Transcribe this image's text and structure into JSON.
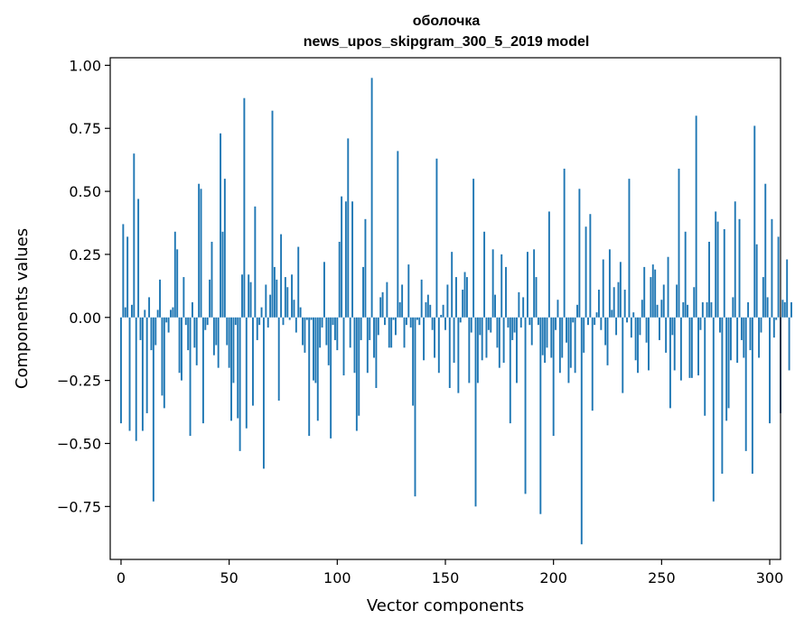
{
  "chart_data": {
    "type": "bar",
    "title": "оболочка",
    "subtitle": "news_upos_skipgram_300_5_2019 model",
    "xlabel": "Vector components",
    "ylabel": "Components values",
    "xlim": [
      -5,
      305
    ],
    "ylim": [
      -0.96,
      1.03
    ],
    "xticks": [
      0,
      50,
      100,
      150,
      200,
      250,
      300
    ],
    "yticks": [
      -0.75,
      -0.5,
      -0.25,
      0.0,
      0.25,
      0.5,
      0.75,
      1.0
    ],
    "ytick_labels": [
      "−0.75",
      "−0.50",
      "−0.25",
      "0.00",
      "0.25",
      "0.50",
      "0.75",
      "1.00"
    ],
    "grid": false,
    "legend": "none",
    "color": "#1f77b4",
    "values": [
      -0.42,
      0.37,
      0.04,
      0.32,
      -0.45,
      0.05,
      0.65,
      -0.49,
      0.47,
      -0.09,
      -0.45,
      0.03,
      -0.38,
      0.08,
      -0.13,
      -0.73,
      -0.11,
      0.03,
      0.15,
      -0.31,
      -0.36,
      -0.02,
      -0.06,
      0.03,
      0.04,
      0.34,
      0.27,
      -0.22,
      -0.25,
      0.16,
      -0.03,
      -0.13,
      -0.47,
      0.06,
      -0.12,
      -0.19,
      0.53,
      0.51,
      -0.42,
      -0.05,
      -0.03,
      0.15,
      0.3,
      -0.15,
      -0.11,
      -0.2,
      0.73,
      0.34,
      0.55,
      -0.11,
      -0.2,
      -0.41,
      -0.26,
      -0.03,
      -0.4,
      -0.53,
      0.17,
      0.87,
      -0.44,
      0.17,
      0.14,
      -0.35,
      0.44,
      -0.09,
      -0.03,
      0.04,
      -0.6,
      0.13,
      -0.04,
      0.09,
      0.82,
      0.2,
      0.15,
      -0.33,
      0.33,
      -0.03,
      0.16,
      0.12,
      -0.01,
      0.17,
      0.07,
      -0.06,
      0.28,
      0.04,
      -0.11,
      -0.14,
      -0.01,
      -0.47,
      -0.01,
      -0.25,
      -0.26,
      -0.41,
      -0.12,
      -0.04,
      0.22,
      -0.11,
      -0.19,
      -0.48,
      -0.03,
      -0.09,
      -0.13,
      0.3,
      0.48,
      -0.23,
      0.46,
      0.71,
      -0.12,
      0.46,
      -0.22,
      -0.45,
      -0.39,
      -0.09,
      0.2,
      0.39,
      -0.22,
      -0.09,
      0.95,
      -0.16,
      -0.28,
      -0.07,
      0.08,
      0.1,
      -0.03,
      0.14,
      -0.12,
      -0.12,
      -0.01,
      -0.07,
      0.66,
      0.06,
      0.13,
      -0.12,
      -0.03,
      0.21,
      -0.04,
      -0.35,
      -0.71,
      -0.01,
      -0.03,
      0.15,
      -0.17,
      0.06,
      0.09,
      0.05,
      -0.05,
      -0.16,
      0.63,
      -0.22,
      0.01,
      0.05,
      -0.05,
      0.13,
      -0.28,
      0.26,
      -0.18,
      0.16,
      -0.3,
      -0.02,
      0.11,
      0.18,
      0.16,
      -0.26,
      -0.06,
      0.55,
      -0.75,
      -0.26,
      -0.07,
      -0.17,
      0.34,
      -0.16,
      -0.05,
      -0.06,
      0.27,
      0.09,
      -0.12,
      -0.2,
      0.25,
      -0.18,
      0.2,
      -0.04,
      -0.42,
      -0.09,
      -0.06,
      -0.26,
      0.1,
      -0.04,
      0.08,
      -0.7,
      0.26,
      -0.03,
      -0.11,
      0.27,
      0.16,
      -0.03,
      -0.78,
      -0.15,
      -0.18,
      -0.12,
      0.42,
      -0.16,
      -0.47,
      -0.05,
      0.07,
      -0.22,
      -0.16,
      0.59,
      -0.1,
      -0.26,
      -0.2,
      -0.02,
      -0.22,
      0.05,
      0.51,
      -0.9,
      -0.14,
      0.36,
      -0.03,
      0.41,
      -0.37,
      -0.03,
      0.02,
      0.11,
      -0.05,
      0.23,
      -0.11,
      -0.19,
      0.27,
      0.03,
      0.12,
      -0.07,
      0.14,
      0.22,
      -0.3,
      0.11,
      -0.02,
      0.55,
      -0.08,
      0.02,
      -0.17,
      -0.22,
      -0.07,
      0.07,
      0.2,
      -0.1,
      -0.21,
      0.16,
      0.21,
      0.19,
      0.05,
      -0.09,
      0.07,
      0.13,
      -0.14,
      0.24,
      -0.36,
      -0.07,
      -0.21,
      0.13,
      0.59,
      -0.25,
      0.06,
      0.34,
      0.05,
      -0.24,
      -0.24,
      0.12,
      0.8,
      -0.23,
      -0.05,
      0.06,
      -0.39,
      0.06,
      0.3,
      0.06,
      -0.73,
      0.42,
      0.38,
      -0.06,
      -0.62,
      0.35,
      -0.41,
      -0.36,
      -0.17,
      0.08,
      0.46,
      -0.18,
      0.39,
      -0.09,
      -0.16,
      -0.53,
      0.06,
      -0.13,
      -0.62,
      0.76,
      0.29,
      -0.16,
      -0.06,
      0.16,
      0.53,
      0.08,
      -0.42,
      0.39,
      -0.08,
      -0.01,
      0.32,
      -0.38,
      0.07,
      0.06,
      0.23,
      -0.21,
      0.06
    ]
  }
}
